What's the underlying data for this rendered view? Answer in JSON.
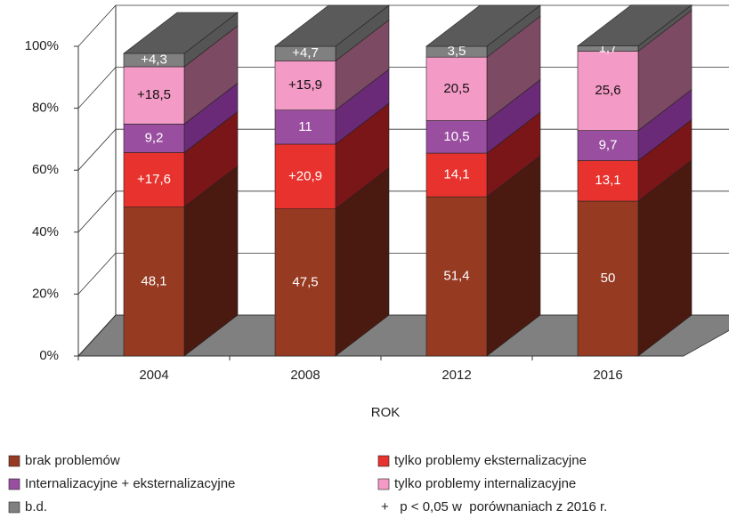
{
  "chart_data": {
    "type": "bar3d_stacked",
    "categories": [
      "2004",
      "2008",
      "2012",
      "2016"
    ],
    "x_label": "ROK",
    "ylim": [
      0,
      100
    ],
    "yticks": [
      {
        "value": 0,
        "label": "0%"
      },
      {
        "value": 20,
        "label": "20%"
      },
      {
        "value": 40,
        "label": "40%"
      },
      {
        "value": 60,
        "label": "60%"
      },
      {
        "value": 80,
        "label": "80%"
      },
      {
        "value": 100,
        "label": "100%"
      }
    ],
    "grid": true,
    "series": [
      {
        "name": "brak problemów",
        "color": "#963a22",
        "side_color": "#4a1a10",
        "values": [
          48.1,
          47.5,
          51.4,
          50
        ],
        "value_labels": [
          "48,1",
          "47,5",
          "51,4",
          "50"
        ]
      },
      {
        "name": "tylko problemy eksternalizacyjne",
        "color": "#e8322e",
        "side_color": "#7a1518",
        "values": [
          17.6,
          20.9,
          14.1,
          13.1
        ],
        "value_labels": [
          "+17,6",
          "+20,9",
          "14,1",
          "13,1"
        ]
      },
      {
        "name": "Internalizacyjne + eksternalizacyjne",
        "color": "#9a4ea0",
        "side_color": "#6a2a78",
        "values": [
          9.2,
          11,
          10.5,
          9.7
        ],
        "value_labels": [
          "9,2",
          "11",
          "10,5",
          "9,7"
        ]
      },
      {
        "name": "tylko problemy internalizacyjne",
        "color": "#f49ac6",
        "side_color": "#7c4a62",
        "values": [
          18.5,
          15.9,
          20.5,
          25.6
        ],
        "value_labels": [
          "+18,5",
          "+15,9",
          "20,5",
          "25,6"
        ]
      },
      {
        "name": "b.d.",
        "color": "#808080",
        "side_color": "#555555",
        "values": [
          4.3,
          4.7,
          3.5,
          1.7
        ],
        "value_labels": [
          "+4,3",
          "+4,7",
          "3,5",
          "1,7"
        ]
      }
    ],
    "note": "+   p < 0,05 w  porównaniach z 2016 r."
  }
}
